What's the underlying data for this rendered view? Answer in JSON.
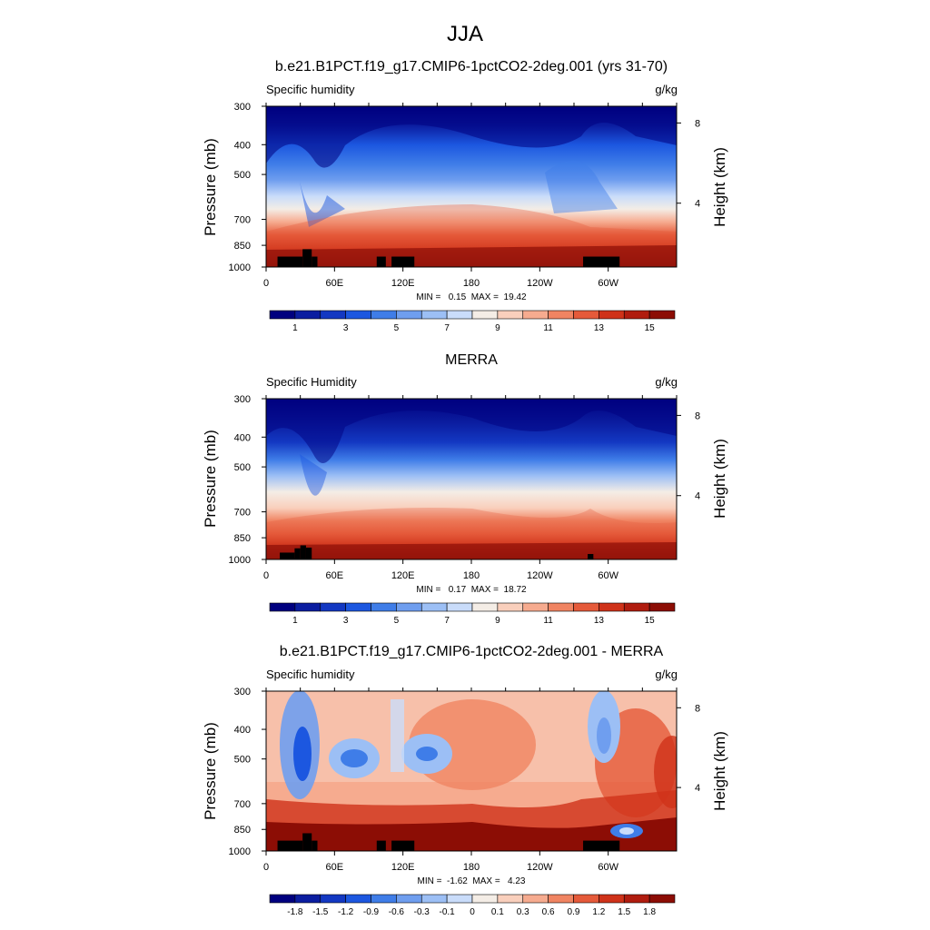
{
  "page": {
    "season": "JJA",
    "contour_colors": [
      "#00007f",
      "#0b1da0",
      "#1338c2",
      "#1c57e0",
      "#3f7de8",
      "#6f9eef",
      "#9cbff5",
      "#c9dcfa",
      "#f4ede6",
      "#f9cfbc",
      "#f6ab8f",
      "#f08462",
      "#e55a3a",
      "#cf3219",
      "#b01c0f",
      "#8c0d05",
      "#7a0000"
    ]
  },
  "chart_data": [
    {
      "type": "heatmap",
      "title": "b.e21.B1PCT.f19_g17.CMIP6-1pctCO2-2deg.001 (yrs 31-70)",
      "left_label": "Specific humidity",
      "units": "g/kg",
      "xlabel": "",
      "ylabel": "Pressure (mb)",
      "ylabel_right": "Height (km)",
      "x_ticks": [
        "0",
        "60E",
        "120E",
        "180",
        "120W",
        "60W"
      ],
      "y_ticks": [
        "300",
        "400",
        "500",
        "700",
        "850",
        "1000"
      ],
      "y_right_ticks": [
        "8",
        "4"
      ],
      "stats": "MIN =   0.15  MAX =  19.42",
      "min": 0.15,
      "max": 19.42,
      "colorbar_labels": [
        "1",
        "3",
        "5",
        "7",
        "9",
        "11",
        "13",
        "15"
      ],
      "surface_mask": [
        {
          "lon": [
            10,
            32
          ],
          "top_mb": 925
        },
        {
          "lon": [
            32,
            40
          ],
          "top_mb": 875
        },
        {
          "lon": [
            40,
            45
          ],
          "top_mb": 925
        },
        {
          "lon": [
            97,
            105
          ],
          "top_mb": 925
        },
        {
          "lon": [
            110,
            130
          ],
          "top_mb": 925
        },
        {
          "lon": [
            278,
            310
          ],
          "top_mb": 925
        }
      ]
    },
    {
      "type": "heatmap",
      "title": "MERRA",
      "left_label": "Specific Humidity",
      "units": "g/kg",
      "xlabel": "",
      "ylabel": "Pressure (mb)",
      "ylabel_right": "Height (km)",
      "x_ticks": [
        "0",
        "60E",
        "120E",
        "180",
        "120W",
        "60W"
      ],
      "y_ticks": [
        "300",
        "400",
        "500",
        "700",
        "850",
        "1000"
      ],
      "y_right_ticks": [
        "8",
        "4"
      ],
      "stats": "MIN =   0.17  MAX =  18.72",
      "min": 0.17,
      "max": 18.72,
      "colorbar_labels": [
        "1",
        "3",
        "5",
        "7",
        "9",
        "11",
        "13",
        "15"
      ],
      "surface_mask": [
        {
          "lon": [
            12,
            25
          ],
          "top_mb": 950
        },
        {
          "lon": [
            25,
            30
          ],
          "top_mb": 920
        },
        {
          "lon": [
            30,
            35
          ],
          "top_mb": 900
        },
        {
          "lon": [
            35,
            40
          ],
          "top_mb": 915
        },
        {
          "lon": [
            282,
            287
          ],
          "top_mb": 960
        }
      ]
    },
    {
      "type": "heatmap",
      "title": "b.e21.B1PCT.f19_g17.CMIP6-1pctCO2-2deg.001 - MERRA",
      "left_label": "Specific humidity",
      "units": "g/kg",
      "xlabel": "",
      "ylabel": "Pressure (mb)",
      "ylabel_right": "Height (km)",
      "x_ticks": [
        "0",
        "60E",
        "120E",
        "180",
        "120W",
        "60W"
      ],
      "y_ticks": [
        "300",
        "400",
        "500",
        "700",
        "850",
        "1000"
      ],
      "y_right_ticks": [
        "8",
        "4"
      ],
      "stats": "MIN =  -1.62  MAX =   4.23",
      "min": -1.62,
      "max": 4.23,
      "colorbar_labels": [
        "-1.8",
        "-1.5",
        "-1.2",
        "-0.9",
        "-0.6",
        "-0.3",
        "-0.1",
        "0",
        "0.1",
        "0.3",
        "0.6",
        "0.9",
        "1.2",
        "1.5",
        "1.8"
      ],
      "surface_mask": [
        {
          "lon": [
            10,
            32
          ],
          "top_mb": 925
        },
        {
          "lon": [
            32,
            40
          ],
          "top_mb": 875
        },
        {
          "lon": [
            40,
            45
          ],
          "top_mb": 925
        },
        {
          "lon": [
            97,
            105
          ],
          "top_mb": 925
        },
        {
          "lon": [
            110,
            130
          ],
          "top_mb": 925
        },
        {
          "lon": [
            278,
            310
          ],
          "top_mb": 925
        }
      ]
    }
  ]
}
